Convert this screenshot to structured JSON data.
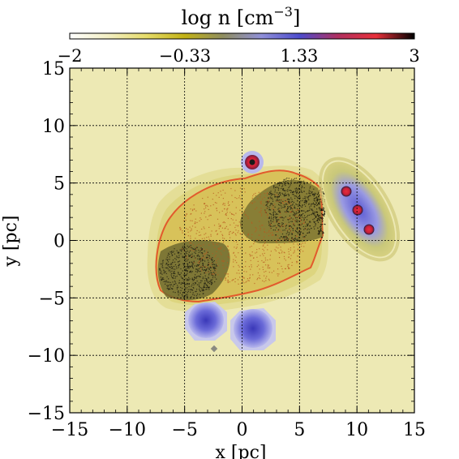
{
  "chart_data": {
    "type": "heatmap",
    "colorbar": {
      "label_main": "log n [cm",
      "label_sup": "−3",
      "label_close": "]",
      "range": [
        -2,
        3
      ],
      "tick_labels": [
        "−2",
        "−0.33",
        "1.33",
        "3"
      ],
      "tick_values": [
        -2,
        -0.33,
        1.33,
        3
      ],
      "colors": [
        "#ffffff",
        "#f3efc4",
        "#e6dc6a",
        "#c2b216",
        "#8f8e60",
        "#9090d8",
        "#4d4ccd",
        "#b03060",
        "#e8303a",
        "#000000"
      ]
    },
    "xlabel": "x [pc]",
    "ylabel": "y [pc]",
    "xlim": [
      -15,
      15
    ],
    "ylim": [
      -15,
      15
    ],
    "x_tick_labels": [
      "−15",
      "−10",
      "−5",
      "0",
      "5",
      "10",
      "15"
    ],
    "x_tick_values": [
      -15,
      -10,
      -5,
      0,
      5,
      10,
      15
    ],
    "y_tick_labels": [
      "−15",
      "−10",
      "−5",
      "0",
      "5",
      "10",
      "15"
    ],
    "y_tick_values": [
      -15,
      -10,
      -5,
      0,
      5,
      10,
      15
    ],
    "grid": true,
    "background_color": "#ede9b4",
    "structures": [
      {
        "kind": "cloud",
        "center": [
          0,
          0
        ],
        "log_n": 0.0
      },
      {
        "kind": "clump",
        "center": [
          1.1,
          6.8
        ],
        "radius": 0.9,
        "log_n": 2.5
      },
      {
        "kind": "clump",
        "center": [
          -3.0,
          -7.0
        ],
        "radius": 1.8,
        "log_n": 1.2
      },
      {
        "kind": "clump",
        "center": [
          1.0,
          -7.8
        ],
        "radius": 1.9,
        "log_n": 1.3
      },
      {
        "kind": "clump",
        "center": [
          -2.3,
          -9.5
        ],
        "radius": 0.3,
        "log_n": 0.5
      },
      {
        "kind": "filament",
        "center": [
          11.0,
          2.6
        ],
        "log_n": 1.2
      },
      {
        "kind": "core",
        "center": [
          9.2,
          4.3
        ],
        "radius": 0.45,
        "log_n": 2.7
      },
      {
        "kind": "core",
        "center": [
          10.2,
          2.6
        ],
        "radius": 0.45,
        "log_n": 2.7
      },
      {
        "kind": "core",
        "center": [
          11.2,
          0.9
        ],
        "radius": 0.45,
        "log_n": 2.7
      }
    ]
  }
}
